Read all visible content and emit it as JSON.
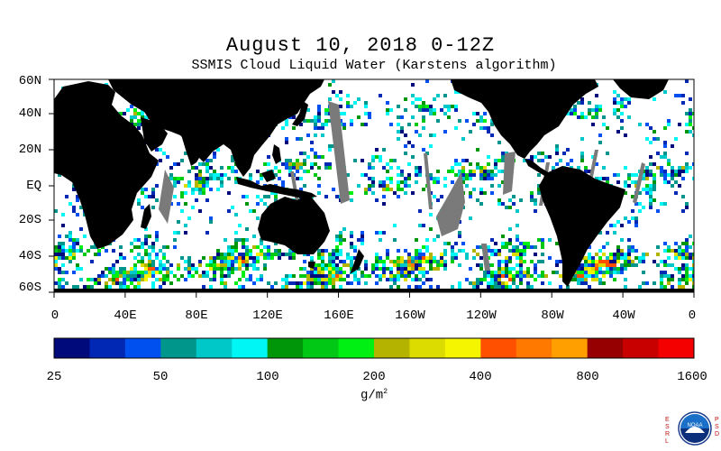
{
  "header": {
    "title": "August 10, 2018 0-12Z",
    "subtitle": "SSMIS Cloud Liquid Water (Karstens algorithm)"
  },
  "map": {
    "lat_ticks": [
      "60N",
      "40N",
      "20N",
      "EQ",
      "20S",
      "40S",
      "60S"
    ],
    "lon_ticks": [
      "0",
      "40E",
      "80E",
      "120E",
      "160E",
      "160W",
      "120W",
      "80W",
      "40W",
      "0"
    ],
    "land_color": "#000000",
    "no_data_color": "#7a7a7a",
    "clear_color": "#ffffff"
  },
  "colorbar": {
    "colors": [
      "#000a7a",
      "#0028b4",
      "#0050f0",
      "#00968c",
      "#00c8c8",
      "#00f5f5",
      "#00960a",
      "#00c814",
      "#00f014",
      "#b4b400",
      "#dcdc00",
      "#f5f500",
      "#ff5000",
      "#ff7800",
      "#ffa000",
      "#960000",
      "#c80000",
      "#f50000"
    ],
    "tick_labels": [
      "25",
      "50",
      "100",
      "200",
      "400",
      "800",
      "1600"
    ],
    "units": "g/m",
    "units_sup": "2"
  },
  "logo": {
    "text": "NOAA",
    "left_letters": "ESRL",
    "right_letters": "PSD"
  }
}
